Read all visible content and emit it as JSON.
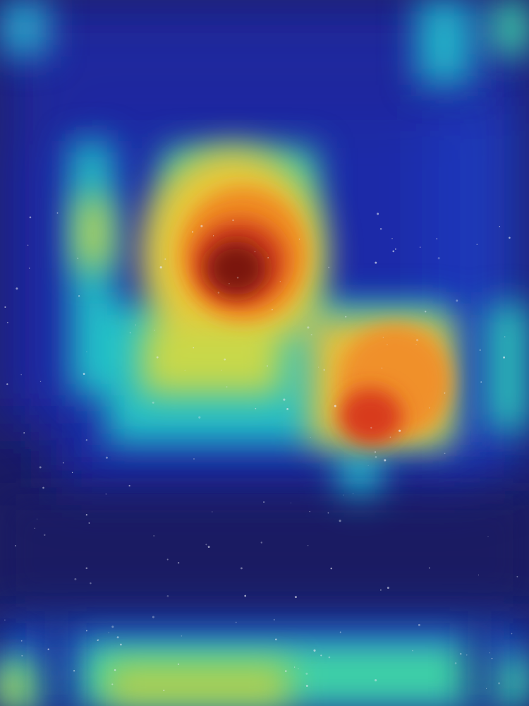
{
  "image": {
    "kind": "photo with heatmap overlay",
    "colormap": [
      "#1b1c63",
      "#1f2aa8",
      "#1d55d8",
      "#22c0c8",
      "#3fd3a6",
      "#c8d84a",
      "#f0b12b",
      "#e0501c",
      "#7a1410"
    ],
    "background_color": "#1b1c63",
    "speckle_color": "#e9edf5"
  }
}
